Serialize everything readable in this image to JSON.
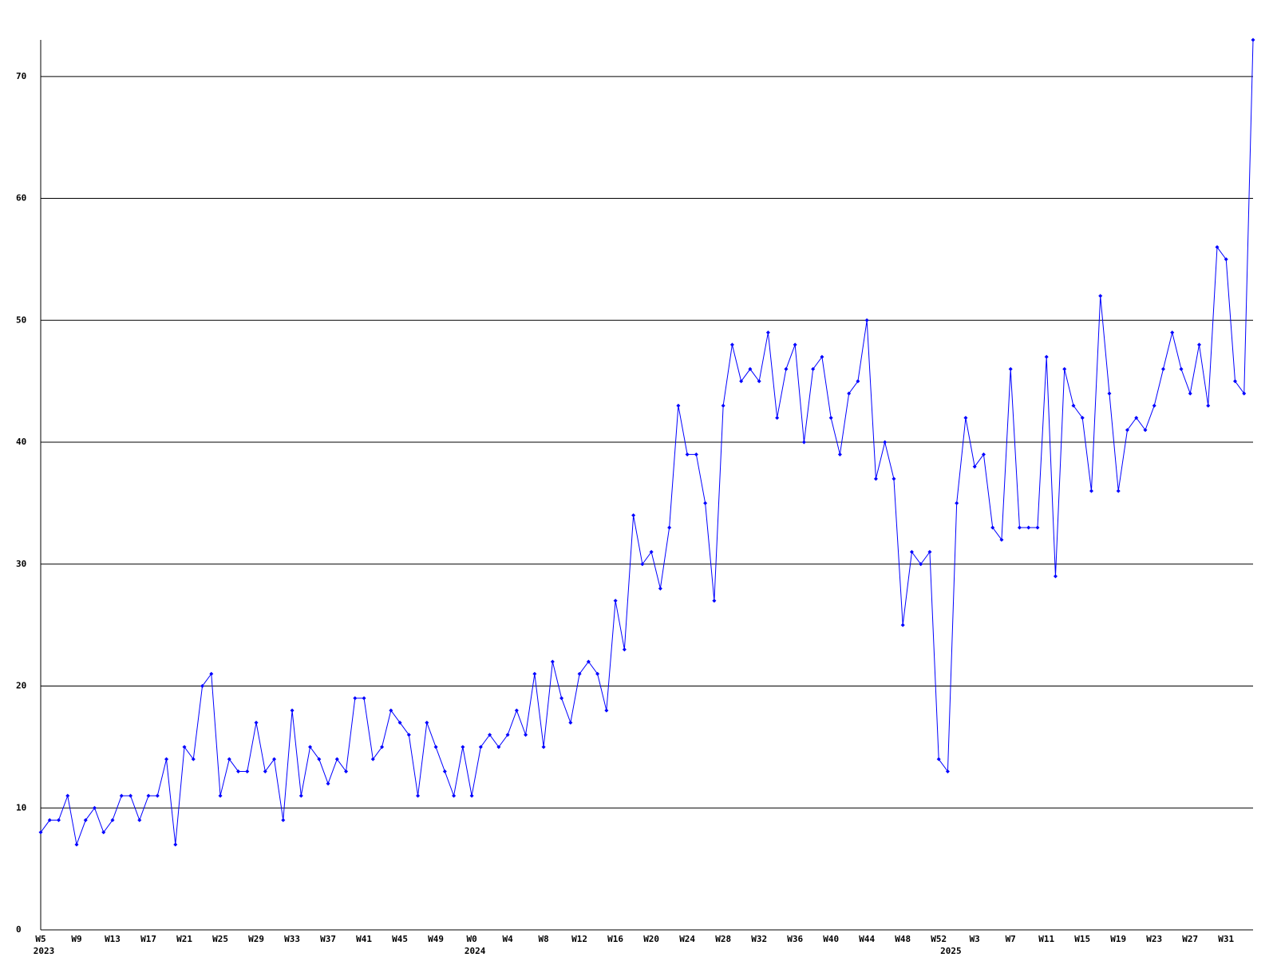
{
  "chart_data": {
    "type": "line",
    "categories": [
      "W5",
      null,
      null,
      null,
      "W9",
      null,
      null,
      null,
      "W13",
      null,
      null,
      null,
      "W17",
      null,
      null,
      null,
      "W21",
      null,
      null,
      null,
      "W25",
      null,
      null,
      null,
      "W29",
      null,
      null,
      null,
      "W33",
      null,
      null,
      null,
      "W37",
      null,
      null,
      null,
      "W41",
      null,
      null,
      null,
      "W45",
      null,
      null,
      null,
      "W49",
      null,
      null,
      null,
      "W0",
      null,
      null,
      null,
      "W4",
      null,
      null,
      null,
      "W8",
      null,
      null,
      null,
      "W12",
      null,
      null,
      null,
      "W16",
      null,
      null,
      null,
      "W20",
      null,
      null,
      null,
      "W24",
      null,
      null,
      null,
      "W28",
      null,
      null,
      null,
      "W32",
      null,
      null,
      null,
      "W36",
      null,
      null,
      null,
      "W40",
      null,
      null,
      null,
      "W44",
      null,
      null,
      null,
      "W48",
      null,
      null,
      null,
      "W52",
      null,
      null,
      null,
      "W3",
      null,
      null,
      null,
      "W7",
      null,
      null,
      null,
      "W11",
      null,
      null,
      null,
      "W15",
      null,
      null,
      null,
      "W19",
      null,
      null,
      null,
      "W23",
      null,
      null,
      null,
      "W27",
      null,
      null,
      null,
      "W31",
      null,
      null,
      null
    ],
    "years": [
      "2023",
      null,
      null,
      null,
      null,
      null,
      null,
      null,
      null,
      null,
      null,
      null,
      null,
      null,
      null,
      null,
      null,
      null,
      null,
      null,
      null,
      null,
      null,
      null,
      null,
      null,
      null,
      null,
      null,
      null,
      null,
      null,
      null,
      null,
      null,
      null,
      null,
      null,
      null,
      null,
      null,
      null,
      null,
      null,
      null,
      null,
      null,
      null,
      "2024",
      null,
      null,
      null,
      null,
      null,
      null,
      null,
      null,
      null,
      null,
      null,
      null,
      null,
      null,
      null,
      null,
      null,
      null,
      null,
      null,
      null,
      null,
      null,
      null,
      null,
      null,
      null,
      null,
      null,
      null,
      null,
      null,
      null,
      null,
      null,
      null,
      null,
      null,
      null,
      null,
      null,
      null,
      null,
      null,
      null,
      null,
      null,
      null,
      null,
      null,
      null,
      null,
      "2025",
      null,
      null,
      null,
      null,
      null,
      null,
      null,
      null,
      null,
      null,
      null,
      null,
      null,
      null,
      null,
      null,
      null,
      null,
      null,
      null,
      null,
      null,
      null,
      null,
      null,
      null,
      null,
      null,
      null,
      null,
      null,
      null,
      null,
      null
    ],
    "values": [
      8,
      9,
      9,
      11,
      7,
      9,
      10,
      8,
      9,
      11,
      11,
      9,
      11,
      11,
      14,
      7,
      15,
      14,
      20,
      21,
      11,
      14,
      13,
      13,
      17,
      13,
      14,
      9,
      18,
      11,
      15,
      14,
      12,
      14,
      13,
      19,
      19,
      14,
      15,
      18,
      17,
      16,
      11,
      17,
      15,
      13,
      11,
      15,
      11,
      15,
      16,
      15,
      16,
      18,
      16,
      21,
      15,
      22,
      19,
      17,
      21,
      22,
      21,
      18,
      27,
      23,
      34,
      30,
      31,
      28,
      33,
      43,
      39,
      39,
      35,
      27,
      43,
      48,
      45,
      46,
      45,
      49,
      42,
      46,
      48,
      40,
      46,
      47,
      42,
      39,
      44,
      45,
      50,
      37,
      40,
      37,
      25,
      31,
      30,
      31,
      14,
      13,
      35,
      42,
      38,
      39,
      33,
      32,
      46,
      33,
      33,
      33,
      47,
      29,
      46,
      43,
      42,
      36,
      52,
      44,
      36,
      41,
      42,
      41,
      43,
      46,
      49,
      46,
      44,
      48,
      43,
      56,
      55,
      45,
      44,
      73
    ],
    "color": "#0000ff",
    "ylim": [
      0,
      73
    ],
    "yticks": [
      0,
      10,
      20,
      30,
      40,
      50,
      60,
      70
    ],
    "grid": true
  }
}
